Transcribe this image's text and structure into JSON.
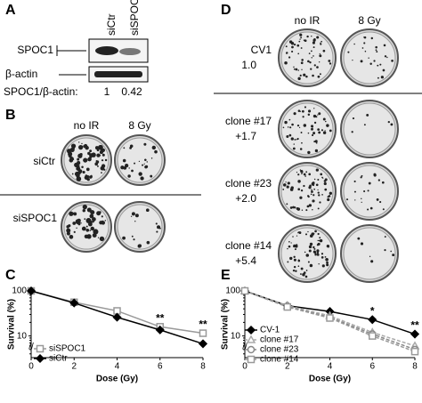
{
  "panelA": {
    "label": "A",
    "columns": [
      "siCtr",
      "siSPOC1"
    ],
    "rows": [
      "SPOC1",
      "β-actin"
    ],
    "ratio_label": "SPOC1/β-actin:",
    "ratios": [
      1,
      0.42
    ]
  },
  "panelB": {
    "label": "B",
    "columns": [
      "no IR",
      "8 Gy"
    ],
    "rows": [
      "siCtr",
      "siSPOC1"
    ]
  },
  "panelD": {
    "label": "D",
    "columns": [
      "no IR",
      "8 Gy"
    ],
    "rows": [
      {
        "name": "CV1",
        "value": "1.0"
      },
      {
        "name": "clone #17",
        "value": "+1.7"
      },
      {
        "name": "clone #23",
        "value": "+2.0"
      },
      {
        "name": "clone #14",
        "value": "+5.4"
      }
    ]
  },
  "chart_data": [
    {
      "type": "line",
      "panel": "C",
      "x_label": "Dose (Gy)",
      "y_label": "Survival (%)",
      "x": [
        0,
        2,
        4,
        6,
        8
      ],
      "xlim": [
        0,
        8
      ],
      "xticks": [
        0,
        2,
        4,
        6,
        8
      ],
      "ylim": [
        3.3,
        100
      ],
      "yticks": [
        10,
        100
      ],
      "log_y": true,
      "legend": "lower left",
      "series": [
        {
          "name": "siSPOC1",
          "color": "#999999",
          "marker": "square",
          "dashed": false,
          "values": [
            100,
            56,
            36,
            16,
            11.5
          ]
        },
        {
          "name": "siCtr",
          "color": "#000000",
          "marker": "diamond",
          "dashed": false,
          "values": [
            100,
            54,
            26,
            13.6,
            6.7
          ]
        }
      ],
      "annotations": [
        {
          "label": "**",
          "x": 6
        },
        {
          "label": "**",
          "x": 8
        }
      ]
    },
    {
      "type": "line",
      "panel": "E",
      "x_label": "Dose (Gy)",
      "y_label": "Survival (%)",
      "x": [
        0,
        2,
        4,
        6,
        8
      ],
      "xlim": [
        0,
        8
      ],
      "xticks": [
        0,
        2,
        4,
        6,
        8
      ],
      "ylim": [
        3.3,
        100
      ],
      "yticks": [
        10,
        100
      ],
      "log_y": true,
      "legend": "lower left",
      "series": [
        {
          "name": "CV-1",
          "color": "#000000",
          "marker": "diamond",
          "dashed": false,
          "values": [
            100,
            47,
            35,
            23,
            11
          ]
        },
        {
          "name": "clone #17",
          "color": "#aaaaaa",
          "marker": "triangle",
          "dashed": true,
          "values": [
            100,
            47,
            28,
            12,
            6
          ]
        },
        {
          "name": "clone #23",
          "color": "#888888",
          "marker": "circle",
          "dashed": true,
          "values": [
            100,
            45,
            26,
            11,
            5
          ]
        },
        {
          "name": "clone #14",
          "color": "#999999",
          "marker": "square",
          "dashed": true,
          "values": [
            100,
            44,
            25,
            10,
            4.5
          ]
        }
      ],
      "annotations": [
        {
          "label": "*",
          "x": 6
        },
        {
          "label": "**",
          "x": 8
        }
      ]
    }
  ]
}
